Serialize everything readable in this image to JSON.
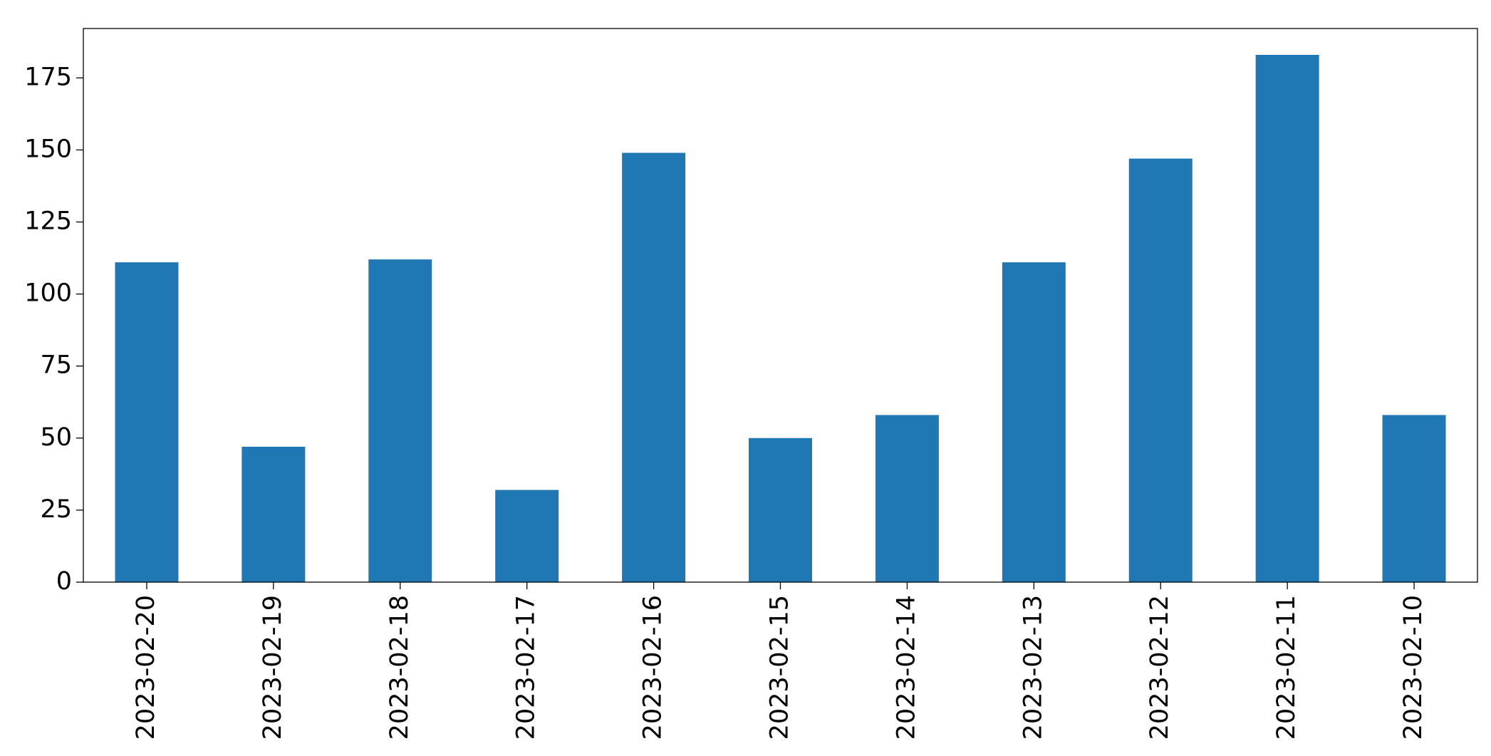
{
  "chart_data": {
    "type": "bar",
    "categories": [
      "2023-02-20",
      "2023-02-19",
      "2023-02-18",
      "2023-02-17",
      "2023-02-16",
      "2023-02-15",
      "2023-02-14",
      "2023-02-13",
      "2023-02-12",
      "2023-02-11",
      "2023-02-10"
    ],
    "values": [
      111,
      47,
      112,
      32,
      149,
      50,
      58,
      111,
      147,
      183,
      58
    ],
    "color": "#1f77b4",
    "ylim": [
      0,
      192.15
    ],
    "yticks": [
      0,
      25,
      50,
      75,
      100,
      125,
      150,
      175
    ],
    "grid": false
  }
}
